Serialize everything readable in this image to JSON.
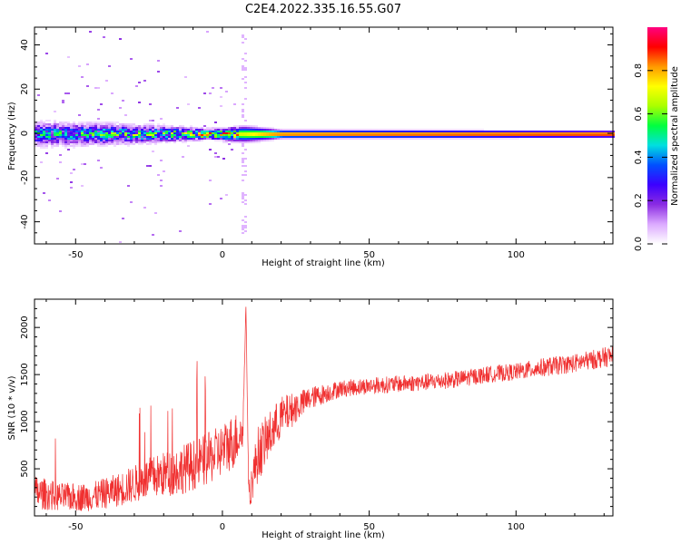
{
  "title": "C2E4.2022.335.16.55.G07",
  "chart_data": [
    {
      "type": "heatmap",
      "xlabel": "Height of straight line (km)",
      "ylabel": "Frequency (Hz)",
      "xlim": [
        -64,
        133
      ],
      "ylim": [
        -50,
        48
      ],
      "xticks": [
        -50,
        0,
        50,
        100
      ],
      "yticks": [
        -40,
        -20,
        0,
        20,
        40
      ],
      "grid": false,
      "colorbar": {
        "label": "Normalized spectral amplitude",
        "range": [
          0,
          1
        ],
        "ticks": [
          "0.0",
          "0.2",
          "0.4",
          "0.6",
          "0.8"
        ],
        "colors": [
          "#ffffff",
          "#dcaaff",
          "#8a2be2",
          "#3c00ff",
          "#0050ff",
          "#00e0e0",
          "#00ff40",
          "#aaff00",
          "#ffff00",
          "#ff9900",
          "#ff0000",
          "#ff0080"
        ]
      },
      "band": [
        {
          "x": -64,
          "halfwidth_hz": 4.5,
          "peak": 0.45
        },
        {
          "x": -40,
          "halfwidth_hz": 4.0,
          "peak": 0.5
        },
        {
          "x": -20,
          "halfwidth_hz": 3.0,
          "peak": 0.55
        },
        {
          "x": -5,
          "halfwidth_hz": 2.0,
          "peak": 0.75
        },
        {
          "x": 7,
          "halfwidth_hz": 3.0,
          "peak": 0.7
        },
        {
          "x": 20,
          "halfwidth_hz": 1.5,
          "peak": 0.9
        },
        {
          "x": 133,
          "halfwidth_hz": 1.2,
          "peak": 1.0
        }
      ]
    },
    {
      "type": "line",
      "xlabel": "Height of straight line (km)",
      "ylabel": "SNR (10 * v/v)",
      "xlim": [
        -64,
        133
      ],
      "ylim": [
        0,
        2300
      ],
      "xticks": [
        -50,
        0,
        50,
        100
      ],
      "yticks": [
        500,
        1000,
        1500,
        2000
      ],
      "color": "#f03030",
      "series": [
        {
          "x": [
            -64,
            -55,
            -45,
            -35,
            -25,
            -15,
            -5,
            0,
            4,
            7,
            8,
            9,
            12,
            20,
            30,
            40,
            50,
            60,
            70,
            80,
            90,
            100,
            110,
            120,
            133
          ],
          "y": [
            250,
            200,
            200,
            280,
            400,
            480,
            600,
            700,
            800,
            900,
            2250,
            200,
            650,
            1050,
            1250,
            1350,
            1380,
            1400,
            1420,
            1450,
            1500,
            1530,
            1580,
            1620,
            1700
          ],
          "noise": [
            180,
            150,
            150,
            180,
            220,
            260,
            280,
            280,
            300,
            200,
            0,
            150,
            300,
            220,
            120,
            90,
            90,
            90,
            90,
            90,
            90,
            90,
            100,
            100,
            110
          ]
        }
      ]
    }
  ]
}
